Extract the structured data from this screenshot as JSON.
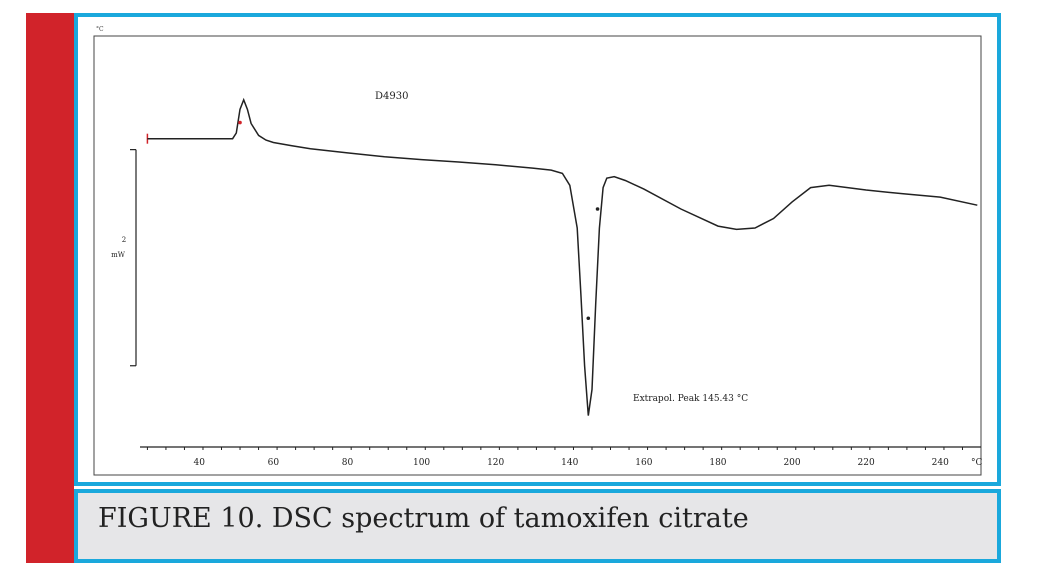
{
  "caption": "FIGURE 10. DSC spectrum of tamoxifen citrate",
  "colors": {
    "accent_red": "#d1232a",
    "frame_blue": "#1aa8dc",
    "caption_bg": "#e6e6e8"
  },
  "chart_data": {
    "type": "line",
    "top_left_label": "°C",
    "sample_label": "D4930",
    "scale_bar_value": "2",
    "scale_bar_unit": "mW",
    "peak_annotation": "Extrapol. Peak   145.43 °C",
    "x_unit": "°C",
    "xlim": [
      24,
      251
    ],
    "x_ticks": [
      40,
      60,
      80,
      100,
      120,
      140,
      160,
      180,
      200,
      220,
      240
    ],
    "series": [
      {
        "x": [
          26,
          30,
          35,
          40,
          45,
          49,
          50,
          51,
          52,
          53,
          54,
          56,
          58,
          60,
          65,
          70,
          80,
          90,
          100,
          110,
          120,
          130,
          135,
          138,
          140,
          142,
          143,
          144,
          145,
          146,
          147,
          148,
          149,
          150,
          152,
          155,
          160,
          170,
          180,
          185,
          190,
          195,
          200,
          205,
          210,
          220,
          230,
          240,
          250
        ],
        "y": [
          1.28,
          1.28,
          1.28,
          1.28,
          1.28,
          1.28,
          1.4,
          1.9,
          2.1,
          1.9,
          1.6,
          1.35,
          1.25,
          1.2,
          1.13,
          1.07,
          0.98,
          0.9,
          0.84,
          0.79,
          0.73,
          0.66,
          0.62,
          0.55,
          0.3,
          -0.6,
          -2.0,
          -3.5,
          -4.55,
          -4.0,
          -2.2,
          -0.6,
          0.25,
          0.45,
          0.48,
          0.4,
          0.22,
          -0.2,
          -0.56,
          -0.63,
          -0.6,
          -0.4,
          -0.05,
          0.25,
          0.3,
          0.2,
          0.12,
          0.05,
          -0.12
        ]
      }
    ],
    "markers": [
      {
        "x": 51,
        "y": 1.62,
        "color": "#d1232a"
      },
      {
        "x": 145,
        "y": -2.5,
        "color": "#222222"
      },
      {
        "x": 147.5,
        "y": -0.2,
        "color": "#222222"
      }
    ],
    "baseline_start": {
      "x": 26,
      "y": 1.28
    },
    "scale_bar_range": [
      -3.5,
      1.05
    ],
    "ylim": [
      -5.0,
      3.0
    ],
    "grid": false
  }
}
